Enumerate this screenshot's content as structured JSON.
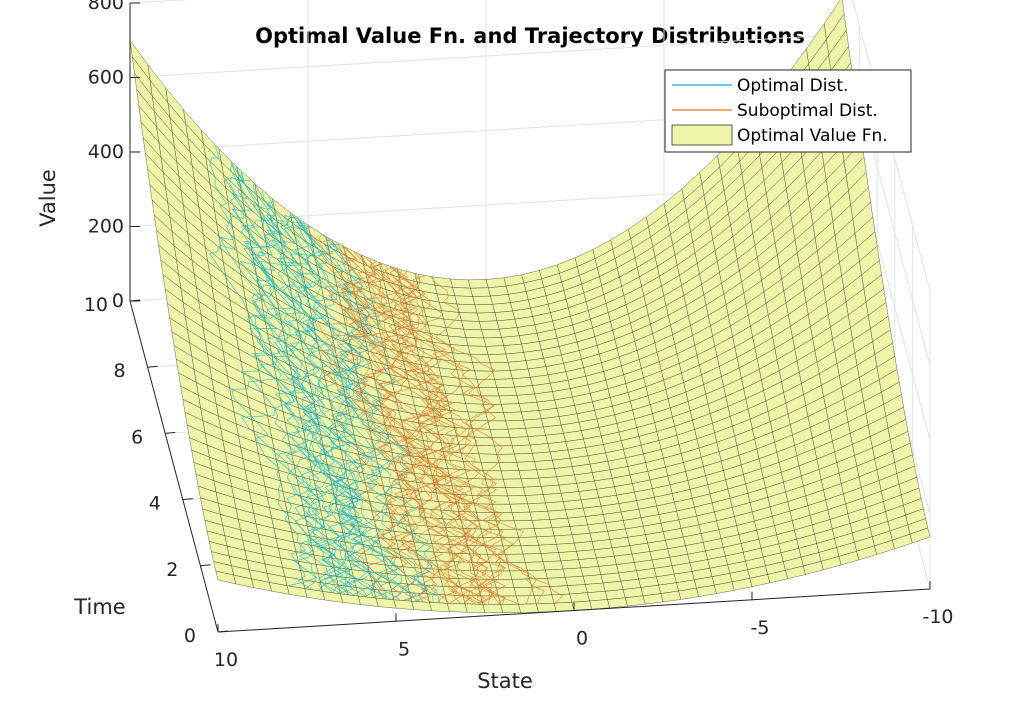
{
  "chart_data": {
    "type": "surface3d",
    "title": "Optimal Value Fn. and Trajectory Distributions",
    "xlabel": "State",
    "ylabel": "Time",
    "zlabel": "Value",
    "xlim": [
      -10,
      10
    ],
    "ylim": [
      0,
      10
    ],
    "zlim": [
      0,
      800
    ],
    "x_ticks": [
      10,
      5,
      0,
      -5,
      -10
    ],
    "y_ticks": [
      0,
      2,
      4,
      6,
      8,
      10
    ],
    "z_ticks": [
      0,
      200,
      400,
      600,
      800
    ],
    "legend": [
      {
        "label": "Optimal Dist.",
        "color": "#1aa7d8",
        "kind": "line"
      },
      {
        "label": "Suboptimal Dist.",
        "color": "#e0782a",
        "kind": "line"
      },
      {
        "label": "Optimal Value Fn.",
        "color": "#eef5a8",
        "kind": "patch"
      }
    ],
    "surface": {
      "description": "Value ~ x^2 * f(t): quadratic bowl in State, flattening toward Time=0",
      "samples": [
        {
          "time": 10,
          "state": 10,
          "value": 660
        },
        {
          "time": 10,
          "state": 0,
          "value": 0
        },
        {
          "time": 10,
          "state": -10,
          "value": 700
        },
        {
          "time": 0,
          "state": 10,
          "value": 150
        },
        {
          "time": 0,
          "state": 0,
          "value": 0
        },
        {
          "time": 0,
          "state": -10,
          "value": 150
        }
      ]
    },
    "series": [
      {
        "name": "Optimal Dist.",
        "state_range": [
          3,
          8
        ],
        "time_range": [
          0,
          10
        ]
      },
      {
        "name": "Suboptimal Dist.",
        "state_range": [
          0,
          6
        ],
        "time_range": [
          0,
          10
        ]
      }
    ]
  }
}
